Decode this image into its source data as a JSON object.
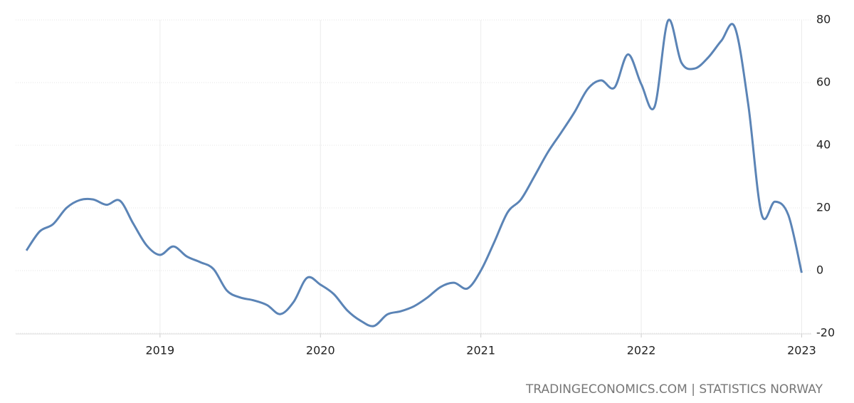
{
  "chart_data": {
    "type": "line",
    "source": "TRADINGECONOMICS.COM | STATISTICS NORWAY",
    "x": [
      2018.167,
      2018.25,
      2018.333,
      2018.417,
      2018.5,
      2018.583,
      2018.667,
      2018.75,
      2018.833,
      2018.917,
      2019.0,
      2019.083,
      2019.167,
      2019.25,
      2019.333,
      2019.417,
      2019.5,
      2019.583,
      2019.667,
      2019.75,
      2019.833,
      2019.917,
      2020.0,
      2020.083,
      2020.167,
      2020.25,
      2020.333,
      2020.417,
      2020.5,
      2020.583,
      2020.667,
      2020.75,
      2020.833,
      2020.917,
      2021.0,
      2021.083,
      2021.167,
      2021.25,
      2021.333,
      2021.417,
      2021.5,
      2021.583,
      2021.667,
      2021.75,
      2021.833,
      2021.917,
      2022.0,
      2022.083,
      2022.167,
      2022.25,
      2022.333,
      2022.417,
      2022.5,
      2022.583,
      2022.667,
      2022.75,
      2022.833,
      2022.917,
      2023.0
    ],
    "series": [
      {
        "color": "#5b84b6",
        "values": [
          6.4,
          12.5,
          14.8,
          20,
          22.5,
          22.7,
          21,
          22.3,
          15,
          8,
          5,
          7.7,
          4.5,
          2.7,
          0.5,
          -6.4,
          -8.6,
          -9.5,
          -11,
          -13.9,
          -10,
          -2.3,
          -4.5,
          -7.5,
          -12.7,
          -16,
          -17.7,
          -14,
          -13,
          -11.4,
          -8.6,
          -5.2,
          -3.9,
          -5.7,
          0,
          9,
          18.6,
          22.7,
          30,
          37.7,
          44,
          50.5,
          58,
          60.7,
          58.4,
          69,
          59.5,
          52.3,
          79.8,
          66.4,
          64.5,
          68,
          73.4,
          77.7,
          53,
          18,
          22,
          17.7,
          -0.7
        ]
      }
    ],
    "xlim": [
      2018.1,
      2023.06
    ],
    "xticks": [
      2019,
      2020,
      2021,
      2022,
      2023
    ],
    "ylim": [
      -20,
      80
    ],
    "yticks": [
      -20,
      0,
      20,
      40,
      60,
      80
    ],
    "grid": true
  }
}
